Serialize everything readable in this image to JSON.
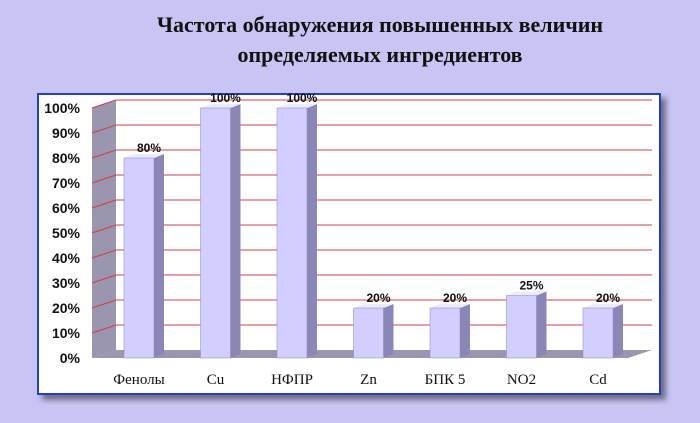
{
  "chart_data": {
    "type": "bar",
    "title_lines": [
      "Частота обнаружения повышенных величин",
      "определяемых ингредиентов"
    ],
    "categories": [
      "Фенолы",
      "Cu",
      "НФПР",
      "Zn",
      "БПК 5",
      "NO2",
      "Cd"
    ],
    "values": [
      80,
      100,
      100,
      20,
      20,
      25,
      20
    ],
    "data_labels": [
      "80%",
      "100%",
      "100%",
      "20%",
      "20%",
      "25%",
      "20%"
    ],
    "y_ticks": [
      "0%",
      "10%",
      "20%",
      "30%",
      "40%",
      "50%",
      "60%",
      "70%",
      "80%",
      "90%",
      "100%"
    ],
    "ylim": [
      0,
      100
    ],
    "grid": true,
    "colors": {
      "bar_front": "#d2ceff",
      "bar_side": "#8a86b8",
      "bar_top": "#eceaff",
      "grid": "#d04040",
      "plot_bg": "#ffffff",
      "wall": "#9a96b0",
      "frame": "#2040c0",
      "page_bg": "#c8c4f4"
    }
  }
}
